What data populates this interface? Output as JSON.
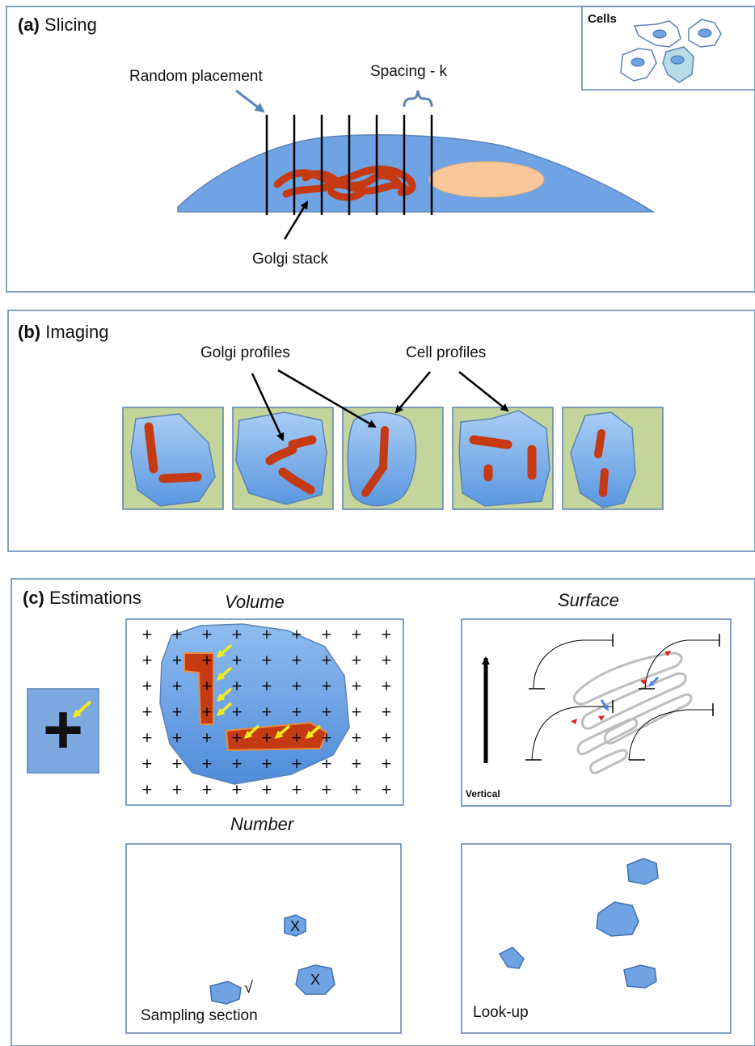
{
  "colors": {
    "panel_border": "#5b82b5",
    "cell_blue": "#6fa3e3",
    "cell_blue_light": "#a9cdf4",
    "golgi_red": "#c53a12",
    "nucleus": "#f8c79a",
    "tile_green": "#c3d59b",
    "arrow_yellow": "#f2ea1b",
    "grid_gray": "#bbbbbb"
  },
  "panel_a": {
    "tag": "(a)",
    "title": "Slicing",
    "cells_label": "Cells",
    "random_placement": "Random placement",
    "spacing": "Spacing - k",
    "golgi_stack": "Golgi stack"
  },
  "panel_b": {
    "tag": "(b)",
    "title": "Imaging",
    "golgi_profiles": "Golgi profiles",
    "cell_profiles": "Cell profiles"
  },
  "panel_c": {
    "tag": "(c)",
    "title": "Estimations",
    "volume": "Volume",
    "surface": "Surface",
    "number": "Number",
    "vertical": "Vertical",
    "mark_x": "X",
    "check": "√",
    "sampling_section": "Sampling section",
    "look_up": "Look-up",
    "plus_symbol": "+"
  }
}
